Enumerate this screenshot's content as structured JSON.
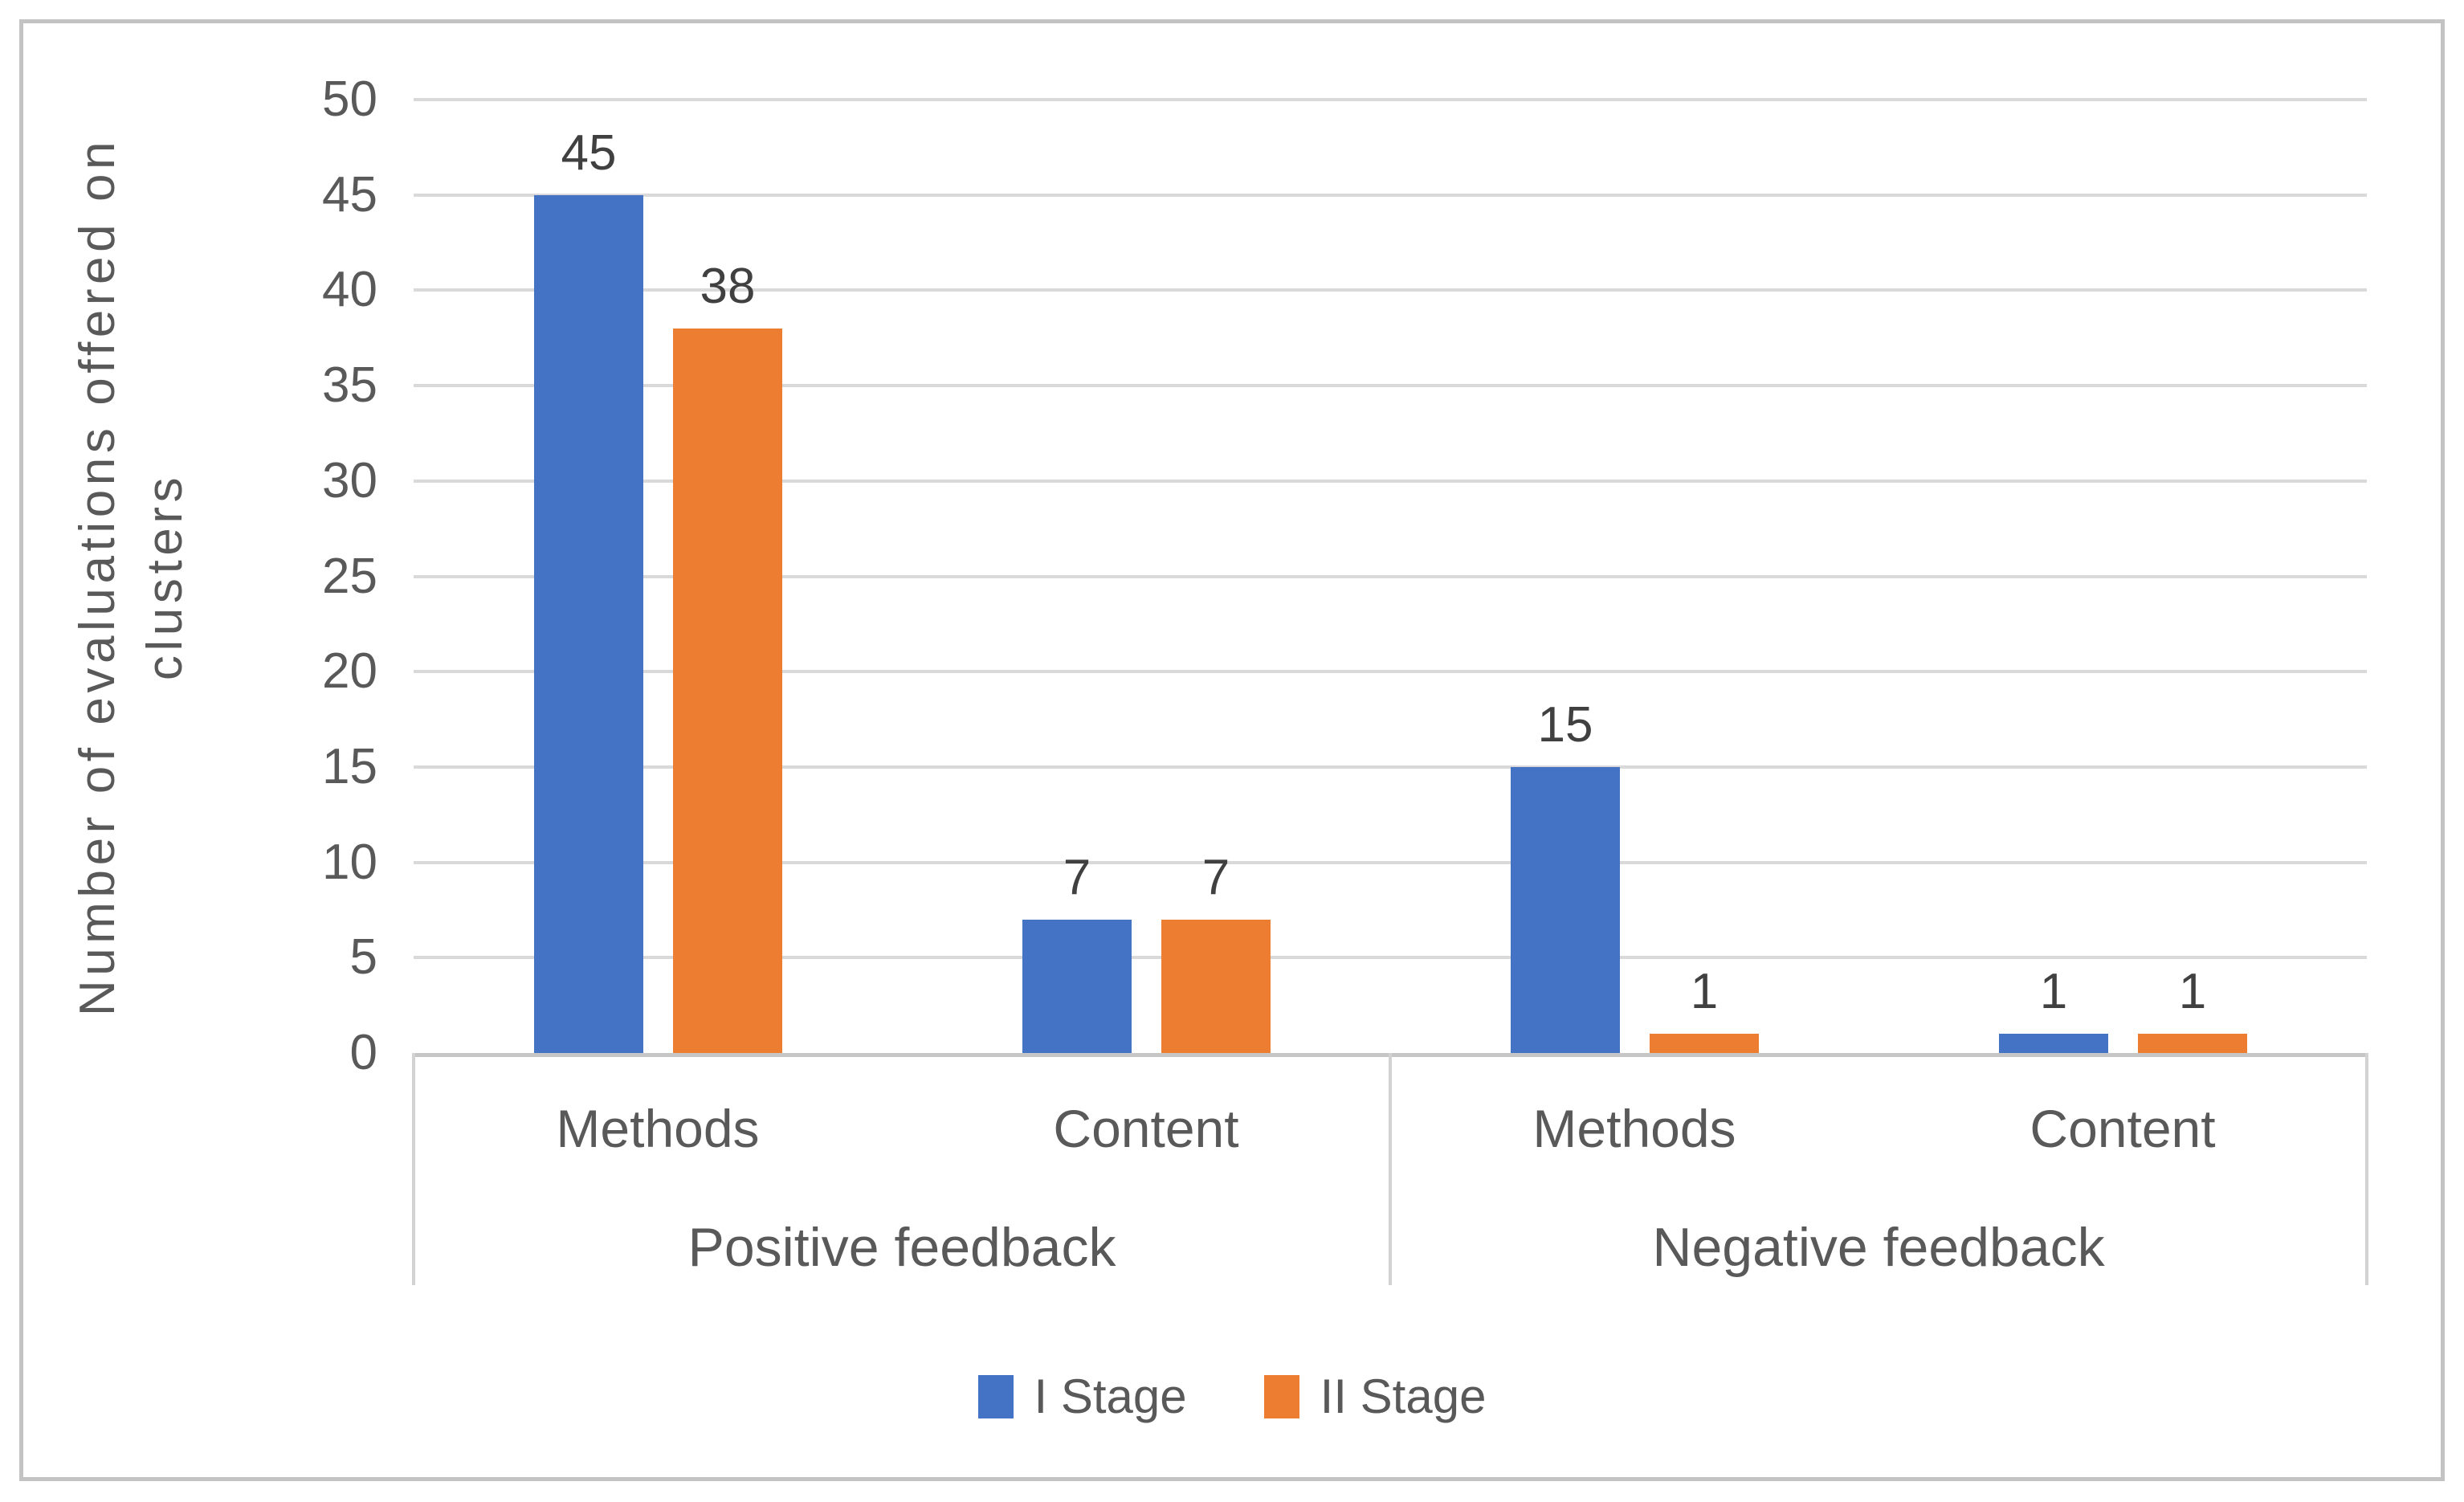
{
  "chart_data": {
    "type": "bar",
    "title": "",
    "ylabel": "Number of evaluations offered on clusters",
    "ylabel_lines": [
      "Number of evaluations offered on",
      "clusters"
    ],
    "xlabel": "",
    "ylim": [
      0,
      50
    ],
    "y_ticks": [
      0,
      5,
      10,
      15,
      20,
      25,
      30,
      35,
      40,
      45,
      50
    ],
    "grid": true,
    "data_labels": true,
    "legend_position": "bottom",
    "series": [
      {
        "name": "I Stage",
        "color": "#4472C4"
      },
      {
        "name": "II Stage",
        "color": "#ED7D31"
      }
    ],
    "groups": [
      {
        "label": "Positive feedback",
        "categories": [
          {
            "label": "Methods",
            "values": [
              45,
              38
            ]
          },
          {
            "label": "Content",
            "values": [
              7,
              7
            ]
          }
        ]
      },
      {
        "label": "Negative feedback",
        "categories": [
          {
            "label": "Methods",
            "values": [
              15,
              1
            ]
          },
          {
            "label": "Content",
            "values": [
              1,
              1
            ]
          }
        ]
      }
    ]
  },
  "style": {
    "bar_blue": "#4472C4",
    "bar_orange": "#ED7D31",
    "gridline_color": "#D9D9D9",
    "axis_line_color": "#C6C6C6",
    "separator_color": "#D2D2D2",
    "label_gray": "#595959",
    "data_label_color": "#404040",
    "outer_border_color": "#C3C3C3"
  }
}
